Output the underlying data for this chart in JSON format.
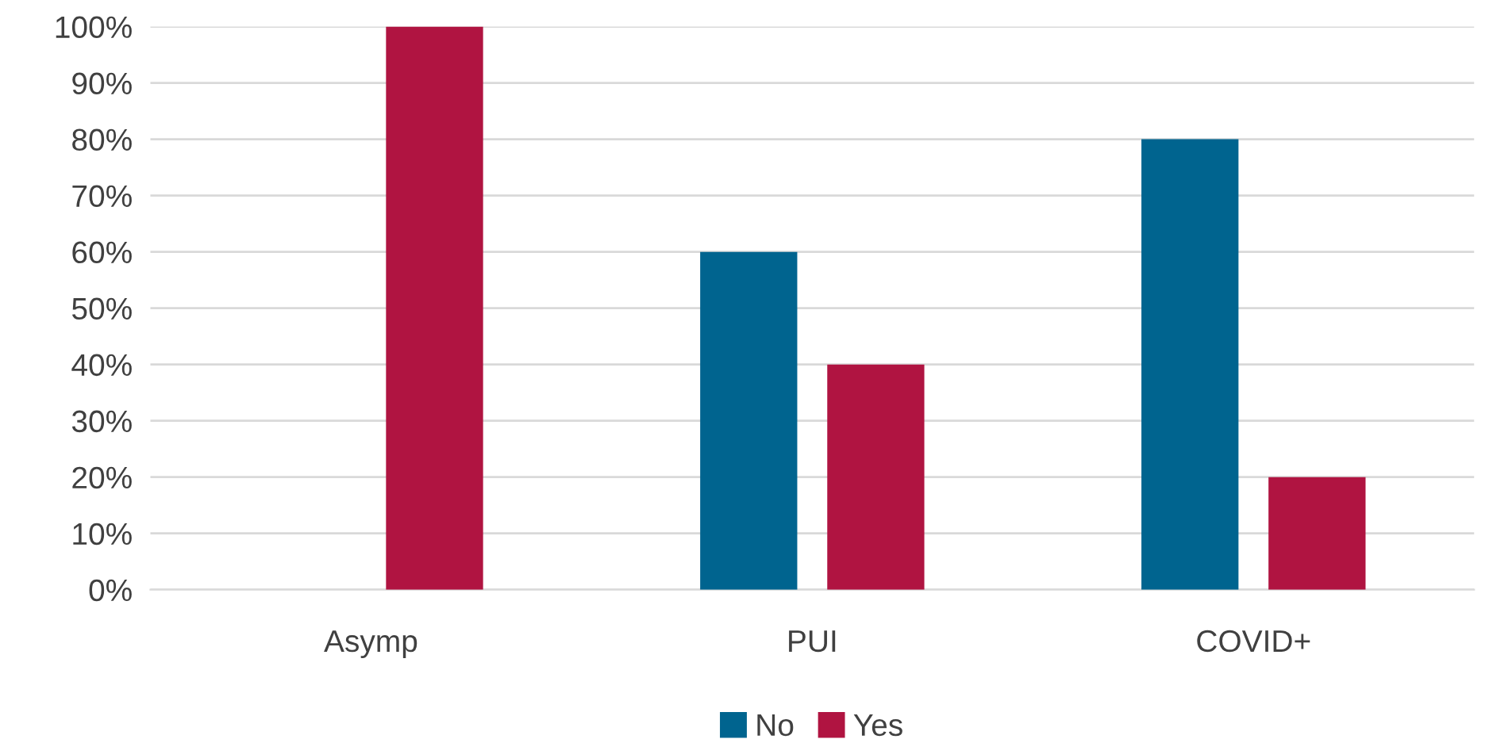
{
  "chart_data": {
    "type": "bar",
    "categories": [
      "Asymp",
      "PUI",
      "COVID+"
    ],
    "series": [
      {
        "name": "No",
        "color": "#00648f",
        "values": [
          0,
          60,
          80
        ]
      },
      {
        "name": "Yes",
        "color": "#b01441",
        "values": [
          100,
          40,
          20
        ]
      }
    ],
    "ylim": [
      0,
      100
    ],
    "yticks": [
      {
        "value": 0,
        "label": "0%"
      },
      {
        "value": 10,
        "label": "10%"
      },
      {
        "value": 20,
        "label": "20%"
      },
      {
        "value": 30,
        "label": "30%"
      },
      {
        "value": 40,
        "label": "40%"
      },
      {
        "value": 50,
        "label": "50%"
      },
      {
        "value": 60,
        "label": "60%"
      },
      {
        "value": 70,
        "label": "70%"
      },
      {
        "value": 80,
        "label": "80%"
      },
      {
        "value": 90,
        "label": "90%"
      },
      {
        "value": 100,
        "label": "100%"
      }
    ],
    "grid": "y",
    "legend": "bottom"
  }
}
